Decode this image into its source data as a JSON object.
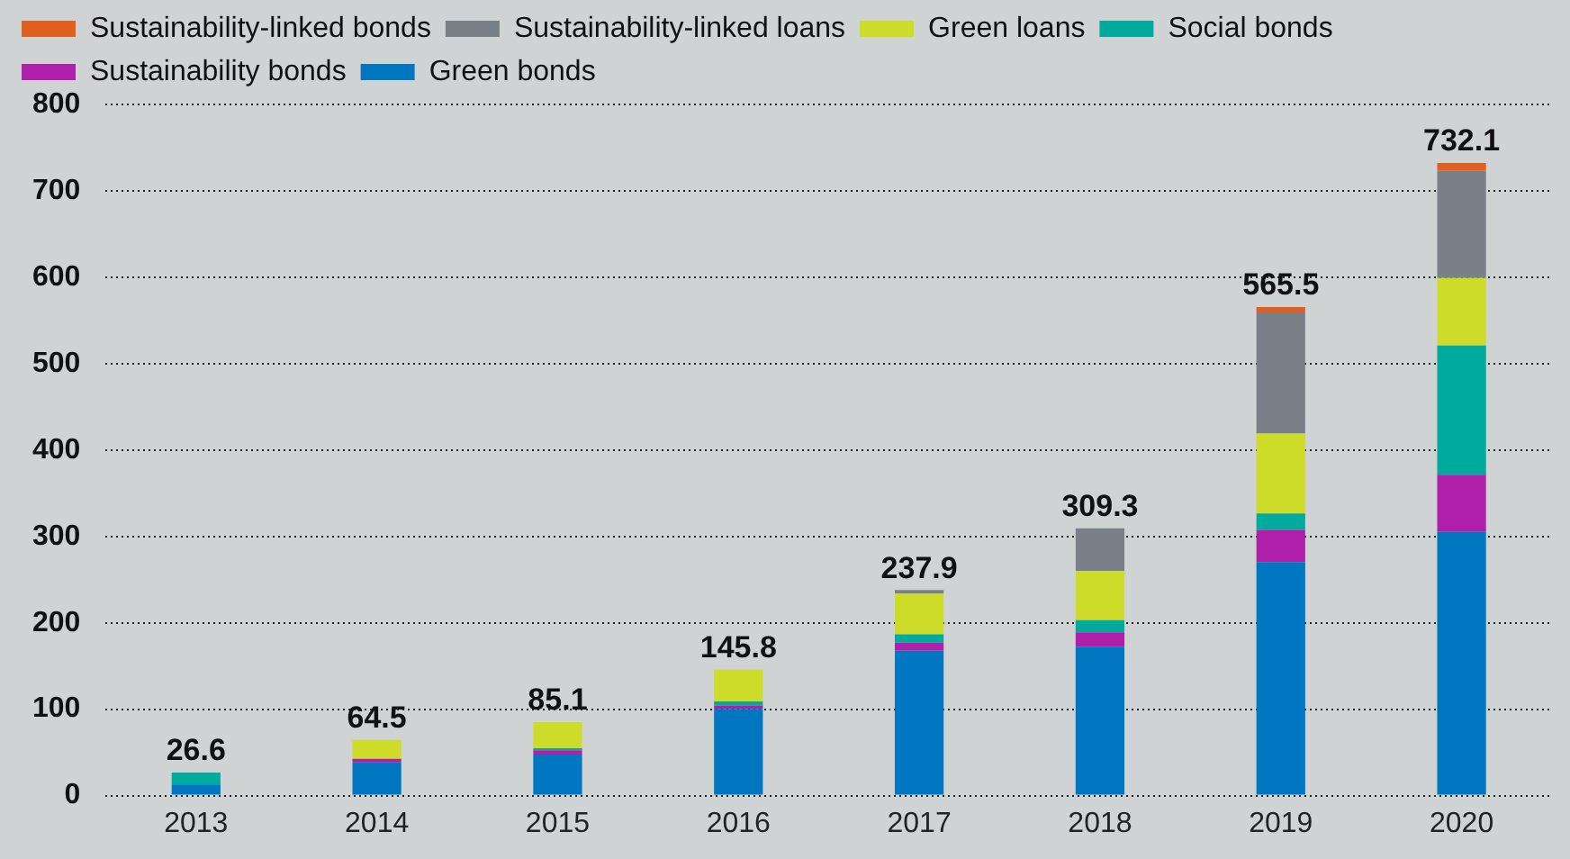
{
  "chart_data": {
    "type": "bar",
    "stacked": true,
    "categories": [
      "2013",
      "2014",
      "2015",
      "2016",
      "2017",
      "2018",
      "2019",
      "2020"
    ],
    "series": [
      {
        "name": "Green bonds",
        "color": "#0077c0",
        "values": [
          13,
          38.5,
          47.4,
          100.4,
          167.6,
          172.3,
          270.4,
          305.1
        ]
      },
      {
        "name": "Sustainability bonds",
        "color": "#b01faa",
        "values": [
          0,
          4,
          5,
          4,
          9.5,
          16.6,
          37.2,
          66.4
        ]
      },
      {
        "name": "Social bonds",
        "color": "#00ab9e",
        "values": [
          13.6,
          0,
          2.4,
          4.7,
          9.5,
          14.2,
          19,
          149.4
        ]
      },
      {
        "name": "Green loans",
        "color": "#cddc29",
        "values": [
          0,
          22,
          30.3,
          36.7,
          47.3,
          56.9,
          92.5,
          78.3
        ]
      },
      {
        "name": "Sustainability-linked loans",
        "color": "#7a8088",
        "values": [
          0,
          0,
          0,
          0,
          4,
          49.3,
          140.1,
          124
        ]
      },
      {
        "name": "Sustainability-linked bonds",
        "color": "#e2601f",
        "values": [
          0,
          0,
          0,
          0,
          0,
          0,
          6.3,
          9
        ]
      }
    ],
    "totals": [
      "26.6",
      "64.5",
      "85.1",
      "145.8",
      "237.9",
      "309.3",
      "565.5",
      "732.1"
    ],
    "ylim": [
      0,
      800
    ],
    "yticks": [
      0,
      100,
      200,
      300,
      400,
      500,
      600,
      700,
      800
    ],
    "grid": "y",
    "legend": "top"
  }
}
